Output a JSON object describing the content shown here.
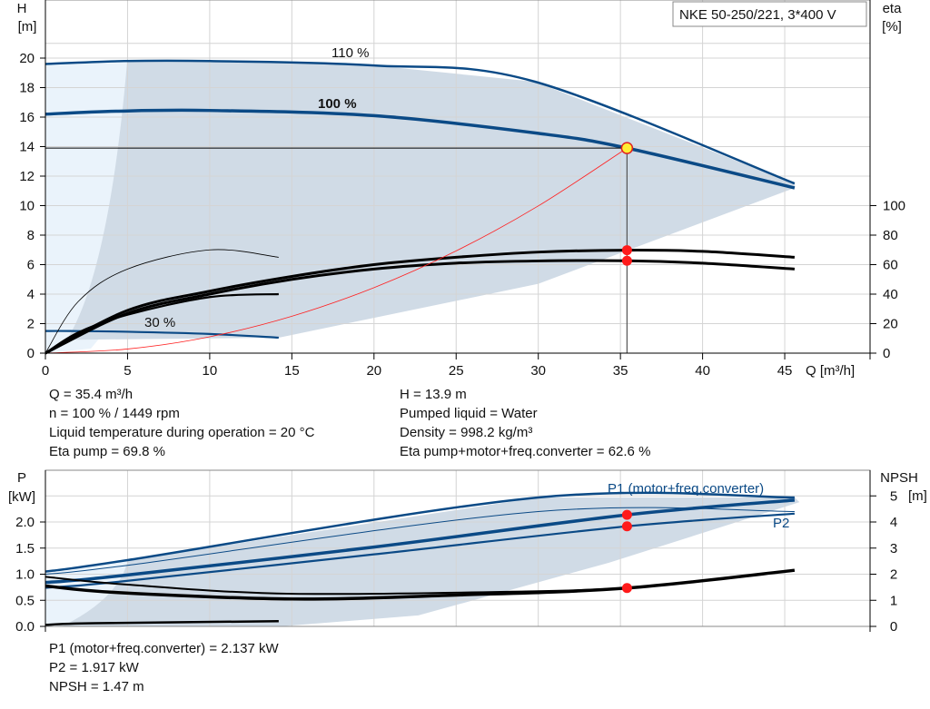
{
  "chart_data": [
    {
      "type": "line",
      "title_box": "NKE 50-250/221, 3*400 V",
      "xlabel": "Q [m³/h]",
      "ylabel": "H",
      "ylabel_unit": "[m]",
      "y2label": "eta",
      "y2label_unit": "[%]",
      "xlim": [
        0,
        50
      ],
      "ylim": [
        0,
        22
      ],
      "y2lim": [
        0,
        100
      ],
      "x_ticks": [
        0,
        5,
        10,
        15,
        20,
        25,
        30,
        35,
        40,
        45
      ],
      "y_ticks": [
        0,
        2,
        4,
        6,
        8,
        10,
        12,
        14,
        16,
        18,
        20
      ],
      "y2_ticks": [
        0,
        20,
        40,
        60,
        80,
        100
      ],
      "grid": true,
      "colors": {
        "head": "#0b4a86",
        "eta": "#000000",
        "system": "#ff2020",
        "region": "#d0dbe6",
        "region_light": "#eaf3fb",
        "point": "#ff1a1a"
      },
      "labels": {
        "speed_110": "110 %",
        "speed_100": "100 %",
        "speed_30": "30 %"
      },
      "series": [
        {
          "name": "110 %",
          "axis": "H",
          "x": [
            0,
            4.8,
            10,
            20,
            29.8,
            45.6
          ],
          "y": [
            19.6,
            19.8,
            19.8,
            19.5,
            18.4,
            11.5
          ]
        },
        {
          "name": "100 %",
          "axis": "H",
          "x": [
            0,
            4.3,
            10,
            20,
            30,
            35.4,
            45.6
          ],
          "y": [
            16.2,
            16.4,
            16.45,
            16.1,
            14.9,
            13.9,
            11.2
          ]
        },
        {
          "name": "30 %",
          "axis": "H",
          "x": [
            0,
            1.5,
            5,
            10,
            14.2
          ],
          "y": [
            1.5,
            1.5,
            1.45,
            1.3,
            1.05
          ]
        },
        {
          "axis": "eta",
          "x": [
            0,
            5,
            10,
            15,
            20,
            25,
            30,
            35.4,
            40,
            45.6
          ],
          "y": [
            0,
            29,
            42,
            52,
            60,
            65,
            68.5,
            69.8,
            69,
            65
          ]
        },
        {
          "axis": "eta",
          "x": [
            0,
            5,
            10,
            15,
            20,
            25,
            30,
            35.4,
            40,
            45.6
          ],
          "y": [
            0,
            27,
            40,
            50,
            57,
            61,
            62.5,
            62.6,
            61,
            57
          ]
        },
        {
          "axis": "eta",
          "x": [
            0,
            2,
            5,
            10,
            14.2
          ],
          "y": [
            0,
            35,
            57,
            70,
            65
          ]
        },
        {
          "axis": "eta",
          "x": [
            0,
            2,
            5,
            10,
            14.2
          ],
          "y": [
            0,
            14,
            26,
            38,
            40
          ]
        },
        {
          "axis": "H",
          "system_curve": true,
          "x": [
            0,
            5,
            10,
            15,
            20,
            25,
            30,
            35.4
          ],
          "y": [
            0,
            0.28,
            1.11,
            2.5,
            4.44,
            6.93,
            9.98,
            13.9
          ]
        }
      ],
      "operating_point": {
        "Q": 35.4,
        "H": 13.9,
        "eta_pump": 69.8,
        "eta_total": 62.6
      }
    },
    {
      "type": "line",
      "ylabel": "P",
      "ylabel_unit": "[kW]",
      "y2label": "NPSH",
      "y2label_unit": "[m]",
      "xlim": [
        0,
        50
      ],
      "ylim": [
        0,
        2.75
      ],
      "y2lim": [
        0,
        5.5
      ],
      "y_ticks": [
        "0.0",
        "0.5",
        "1.0",
        "1.5",
        "2.0"
      ],
      "y2_ticks": [
        0,
        1,
        2,
        3,
        4,
        5
      ],
      "grid": true,
      "labels": {
        "p1": "P1 (motor+freq.converter)",
        "p2": "P2"
      },
      "series": [
        {
          "axis": "P",
          "x": [
            0,
            5,
            30,
            45.6
          ],
          "y": [
            1.05,
            1.27,
            2.47,
            2.47
          ]
        },
        {
          "axis": "P",
          "x": [
            0,
            5,
            30,
            45.6
          ],
          "y": [
            1.0,
            1.17,
            2.2,
            2.2
          ]
        },
        {
          "name": "P1 (motor+freq.converter)",
          "axis": "P",
          "x": [
            0,
            4.3,
            20,
            35.4,
            45.6
          ],
          "y": [
            0.84,
            0.96,
            1.52,
            2.137,
            2.42
          ]
        },
        {
          "name": "P2",
          "axis": "P",
          "x": [
            0,
            4.3,
            20,
            35.4,
            45.6
          ],
          "y": [
            0.74,
            0.85,
            1.38,
            1.917,
            2.16
          ]
        },
        {
          "axis": "NPSH",
          "x": [
            0,
            4.3,
            15,
            25,
            35.4,
            45.6
          ],
          "y": [
            1.55,
            1.3,
            1.05,
            1.2,
            1.47,
            2.15
          ]
        },
        {
          "axis": "NPSH",
          "x": [
            0,
            5,
            15,
            30,
            35.4
          ],
          "y": [
            1.9,
            1.6,
            1.25,
            1.35,
            1.47
          ]
        },
        {
          "axis": "P",
          "x": [
            0,
            3,
            14.2
          ],
          "y": [
            0.03,
            0.06,
            0.1
          ]
        }
      ],
      "operating_point": {
        "Q": 35.4,
        "P1": 2.137,
        "P2": 1.917,
        "NPSH": 1.47
      }
    }
  ],
  "info_top_left": [
    "Q = 35.4 m³/h",
    "n = 100 % / 1449 rpm",
    "Liquid temperature during operation = 20 °C",
    "Eta pump = 69.8 %"
  ],
  "info_top_right": [
    "H = 13.9 m",
    "Pumped liquid = Water",
    "Density = 998.2 kg/m³",
    "Eta pump+motor+freq.converter = 62.6 %"
  ],
  "info_bottom": [
    "P1 (motor+freq.converter) = 2.137 kW",
    "P2 = 1.917 kW",
    "NPSH = 1.47 m"
  ]
}
